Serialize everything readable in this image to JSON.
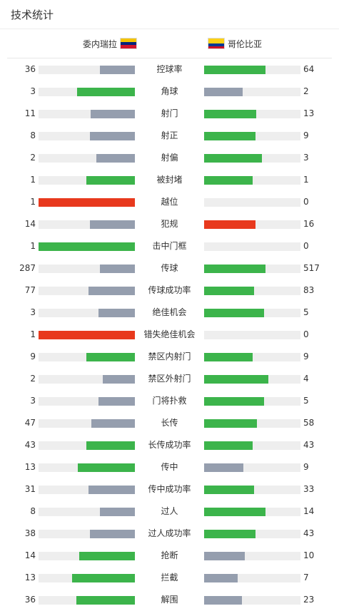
{
  "header": {
    "title": "技术统计"
  },
  "teams": {
    "home": {
      "name": "委内瑞拉",
      "flag_colors": [
        "#f4c300",
        "#00247d",
        "#cf142b"
      ]
    },
    "away": {
      "name": "哥伦比亚",
      "flag_colors": [
        "#fcd116",
        "#003893",
        "#ce1126"
      ]
    }
  },
  "colors": {
    "win": "#3cb44b",
    "lose": "#959eae",
    "alert": "#e8391d",
    "track": "#eeeeee"
  },
  "stats": [
    {
      "label": "控球率",
      "home": "36",
      "away": "64",
      "home_pct": 36,
      "away_pct": 64,
      "home_color": "lose",
      "away_color": "win"
    },
    {
      "label": "角球",
      "home": "3",
      "away": "2",
      "home_pct": 60,
      "away_pct": 40,
      "home_color": "win",
      "away_color": "lose"
    },
    {
      "label": "射门",
      "home": "11",
      "away": "13",
      "home_pct": 46,
      "away_pct": 54,
      "home_color": "lose",
      "away_color": "win"
    },
    {
      "label": "射正",
      "home": "8",
      "away": "9",
      "home_pct": 47,
      "away_pct": 53,
      "home_color": "lose",
      "away_color": "win"
    },
    {
      "label": "射偏",
      "home": "2",
      "away": "3",
      "home_pct": 40,
      "away_pct": 60,
      "home_color": "lose",
      "away_color": "win"
    },
    {
      "label": "被封堵",
      "home": "1",
      "away": "1",
      "home_pct": 50,
      "away_pct": 50,
      "home_color": "win",
      "away_color": "win"
    },
    {
      "label": "越位",
      "home": "1",
      "away": "0",
      "home_pct": 100,
      "away_pct": 0,
      "home_color": "alert",
      "away_color": "win"
    },
    {
      "label": "犯规",
      "home": "14",
      "away": "16",
      "home_pct": 47,
      "away_pct": 53,
      "home_color": "lose",
      "away_color": "alert"
    },
    {
      "label": "击中门框",
      "home": "1",
      "away": "0",
      "home_pct": 100,
      "away_pct": 0,
      "home_color": "win",
      "away_color": "win"
    },
    {
      "label": "传球",
      "home": "287",
      "away": "517",
      "home_pct": 36,
      "away_pct": 64,
      "home_color": "lose",
      "away_color": "win"
    },
    {
      "label": "传球成功率",
      "home": "77",
      "away": "83",
      "home_pct": 48,
      "away_pct": 52,
      "home_color": "lose",
      "away_color": "win"
    },
    {
      "label": "绝佳机会",
      "home": "3",
      "away": "5",
      "home_pct": 38,
      "away_pct": 62,
      "home_color": "lose",
      "away_color": "win"
    },
    {
      "label": "错失绝佳机会",
      "home": "1",
      "away": "0",
      "home_pct": 100,
      "away_pct": 0,
      "home_color": "alert",
      "away_color": "win"
    },
    {
      "label": "禁区内射门",
      "home": "9",
      "away": "9",
      "home_pct": 50,
      "away_pct": 50,
      "home_color": "win",
      "away_color": "win"
    },
    {
      "label": "禁区外射门",
      "home": "2",
      "away": "4",
      "home_pct": 33,
      "away_pct": 67,
      "home_color": "lose",
      "away_color": "win"
    },
    {
      "label": "门将扑救",
      "home": "3",
      "away": "5",
      "home_pct": 38,
      "away_pct": 62,
      "home_color": "lose",
      "away_color": "win"
    },
    {
      "label": "长传",
      "home": "47",
      "away": "58",
      "home_pct": 45,
      "away_pct": 55,
      "home_color": "lose",
      "away_color": "win"
    },
    {
      "label": "长传成功率",
      "home": "43",
      "away": "43",
      "home_pct": 50,
      "away_pct": 50,
      "home_color": "win",
      "away_color": "win"
    },
    {
      "label": "传中",
      "home": "13",
      "away": "9",
      "home_pct": 59,
      "away_pct": 41,
      "home_color": "win",
      "away_color": "lose"
    },
    {
      "label": "传中成功率",
      "home": "31",
      "away": "33",
      "home_pct": 48,
      "away_pct": 52,
      "home_color": "lose",
      "away_color": "win"
    },
    {
      "label": "过人",
      "home": "8",
      "away": "14",
      "home_pct": 36,
      "away_pct": 64,
      "home_color": "lose",
      "away_color": "win"
    },
    {
      "label": "过人成功率",
      "home": "38",
      "away": "43",
      "home_pct": 47,
      "away_pct": 53,
      "home_color": "lose",
      "away_color": "win"
    },
    {
      "label": "抢断",
      "home": "14",
      "away": "10",
      "home_pct": 58,
      "away_pct": 42,
      "home_color": "win",
      "away_color": "lose"
    },
    {
      "label": "拦截",
      "home": "13",
      "away": "7",
      "home_pct": 65,
      "away_pct": 35,
      "home_color": "win",
      "away_color": "lose"
    },
    {
      "label": "解围",
      "home": "36",
      "away": "23",
      "home_pct": 61,
      "away_pct": 39,
      "home_color": "win",
      "away_color": "lose"
    }
  ]
}
